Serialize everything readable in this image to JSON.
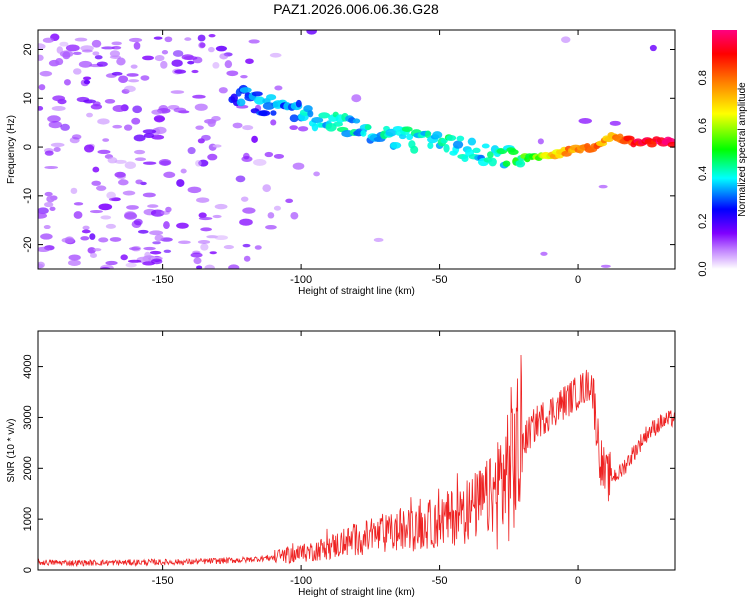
{
  "title": "PAZ1.2026.006.06.36.G28",
  "chart_data": [
    {
      "type": "heatmap",
      "name": "spectrogram",
      "xlabel": "Height of straight line (km)",
      "ylabel": "Frequency (Hz)",
      "xlim": [
        -195,
        35
      ],
      "ylim": [
        -25,
        24
      ],
      "xticks": [
        -150,
        -100,
        -50,
        0
      ],
      "yticks": [
        20,
        10,
        0,
        -10,
        -20
      ],
      "colorbar": {
        "label": "Normalized spectral amplitude",
        "range": [
          0,
          1
        ],
        "ticks": [
          "0.0",
          "0.2",
          "0.4",
          "0.6",
          "0.8"
        ],
        "stops": [
          "#ffffff",
          "#7f00ff",
          "#0000ff",
          "#00ffff",
          "#00ff00",
          "#ffff00",
          "#ff8000",
          "#ff0000",
          "#ff0080"
        ]
      },
      "tonal_ridge": [
        {
          "x": -125,
          "y": 11,
          "v": 0.3
        },
        {
          "x": -115,
          "y": 9,
          "v": 0.3
        },
        {
          "x": -105,
          "y": 8,
          "v": 0.32
        },
        {
          "x": -95,
          "y": 6,
          "v": 0.35
        },
        {
          "x": -85,
          "y": 5,
          "v": 0.38
        },
        {
          "x": -75,
          "y": 3,
          "v": 0.35
        },
        {
          "x": -65,
          "y": 2,
          "v": 0.38
        },
        {
          "x": -55,
          "y": 1,
          "v": 0.4
        },
        {
          "x": -45,
          "y": 0,
          "v": 0.4
        },
        {
          "x": -35,
          "y": -1,
          "v": 0.38
        },
        {
          "x": -25,
          "y": -2,
          "v": 0.42
        },
        {
          "x": -15,
          "y": -2,
          "v": 0.55
        },
        {
          "x": -5,
          "y": -1,
          "v": 0.75
        },
        {
          "x": 5,
          "y": 0,
          "v": 0.82
        },
        {
          "x": 12,
          "y": 2,
          "v": 0.7
        },
        {
          "x": 20,
          "y": 1,
          "v": 0.9
        },
        {
          "x": 35,
          "y": 1,
          "v": 0.95
        }
      ]
    },
    {
      "type": "line",
      "name": "snr",
      "xlabel": "Height of straight line (km)",
      "ylabel": "SNR (10 * v/v)",
      "xlim": [
        -195,
        35
      ],
      "ylim": [
        0,
        4700
      ],
      "xticks": [
        -150,
        -100,
        -50,
        0
      ],
      "yticks": [
        0,
        1000,
        2000,
        3000,
        4000
      ],
      "color": "#ee2222",
      "series": [
        {
          "name": "SNR",
          "x": [
            -195,
            -180,
            -160,
            -140,
            -120,
            -110,
            -100,
            -90,
            -80,
            -70,
            -60,
            -50,
            -40,
            -30,
            -25,
            -20,
            -15,
            -10,
            -5,
            0,
            5,
            8,
            10,
            15,
            20,
            25,
            30,
            35
          ],
          "y": [
            150,
            140,
            150,
            160,
            200,
            250,
            320,
            450,
            600,
            700,
            800,
            950,
            1150,
            1500,
            2000,
            2500,
            2900,
            3100,
            3300,
            3500,
            3700,
            2200,
            1800,
            1900,
            2300,
            2700,
            2900,
            3000
          ]
        }
      ]
    }
  ]
}
